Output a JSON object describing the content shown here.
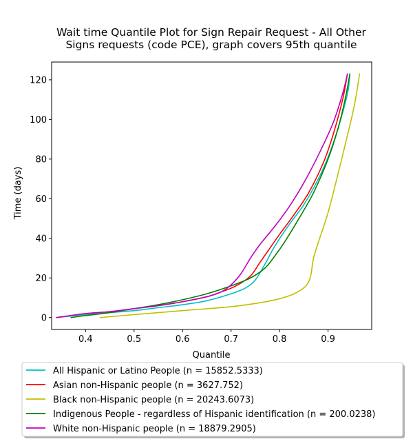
{
  "chart_data": {
    "type": "line",
    "title_lines": [
      "Wait time Quantile Plot for Sign Repair Request - All Other",
      "Signs  requests (code PCE), graph covers 95th quantile"
    ],
    "xlabel": "Quantile",
    "ylabel": "Time (days)",
    "xlim": [
      0.33,
      0.99
    ],
    "ylim": [
      -6,
      129
    ],
    "xticks": [
      0.4,
      0.5,
      0.6,
      0.7,
      0.8,
      0.9
    ],
    "xtick_labels": [
      "0.4",
      "0.5",
      "0.6",
      "0.7",
      "0.8",
      "0.9"
    ],
    "yticks": [
      0,
      20,
      40,
      60,
      80,
      100,
      120
    ],
    "ytick_labels": [
      "0",
      "20",
      "40",
      "60",
      "80",
      "100",
      "120"
    ],
    "legend_position": "below",
    "series": [
      {
        "name": "All Hispanic or Latino People (n = 15852.5333)",
        "color": "#00bfbf",
        "x": [
          0.34,
          0.4,
          0.45,
          0.5,
          0.55,
          0.6,
          0.65,
          0.7,
          0.73,
          0.75,
          0.77,
          0.79,
          0.82,
          0.85,
          0.88,
          0.9,
          0.92,
          0.94,
          0.945
        ],
        "y": [
          0,
          1.5,
          2.5,
          3.5,
          5,
          6.5,
          8.5,
          12,
          15,
          19,
          27,
          36,
          47,
          57,
          70,
          81,
          95,
          113,
          123
        ]
      },
      {
        "name": "Asian non-Hispanic people (n = 3627.752)",
        "color": "#ff0000",
        "x": [
          0.34,
          0.4,
          0.45,
          0.5,
          0.55,
          0.6,
          0.65,
          0.68,
          0.71,
          0.74,
          0.76,
          0.78,
          0.8,
          0.83,
          0.86,
          0.89,
          0.91,
          0.93,
          0.94
        ],
        "y": [
          0,
          2,
          3,
          4.5,
          6,
          8,
          10.5,
          13,
          16,
          21,
          28,
          35,
          42,
          52,
          63,
          78,
          92,
          110,
          123
        ]
      },
      {
        "name": "Black non-Hispanic people (n = 20243.6073)",
        "color": "#bfbf00",
        "x": [
          0.43,
          0.5,
          0.6,
          0.7,
          0.76,
          0.8,
          0.83,
          0.85,
          0.86,
          0.865,
          0.87,
          0.88,
          0.9,
          0.92,
          0.94,
          0.955,
          0.965
        ],
        "y": [
          0,
          1.5,
          3.5,
          5.5,
          7.5,
          9.5,
          12,
          15,
          18,
          22,
          30,
          38,
          53,
          72,
          92,
          108,
          123
        ]
      },
      {
        "name": "Indigenous People - regardless of Hispanic identification (n = 200.0238)",
        "color": "#008000",
        "x": [
          0.37,
          0.4,
          0.45,
          0.5,
          0.55,
          0.6,
          0.65,
          0.7,
          0.74,
          0.77,
          0.79,
          0.81,
          0.84,
          0.87,
          0.9,
          0.92,
          0.935,
          0.945
        ],
        "y": [
          0,
          1,
          2.5,
          4.5,
          6.5,
          9,
          12,
          16,
          20,
          25,
          31,
          38,
          50,
          63,
          80,
          95,
          110,
          123
        ]
      },
      {
        "name": "White non-Hispanic people (n = 18879.2905)",
        "color": "#bf00bf",
        "x": [
          0.34,
          0.4,
          0.45,
          0.5,
          0.55,
          0.6,
          0.65,
          0.68,
          0.7,
          0.72,
          0.74,
          0.76,
          0.79,
          0.82,
          0.85,
          0.88,
          0.91,
          0.93,
          0.94
        ],
        "y": [
          0,
          2,
          3,
          4.5,
          6,
          8,
          10.5,
          13,
          16.5,
          22,
          30,
          37,
          46,
          56,
          68,
          82,
          98,
          113,
          123
        ]
      }
    ]
  }
}
